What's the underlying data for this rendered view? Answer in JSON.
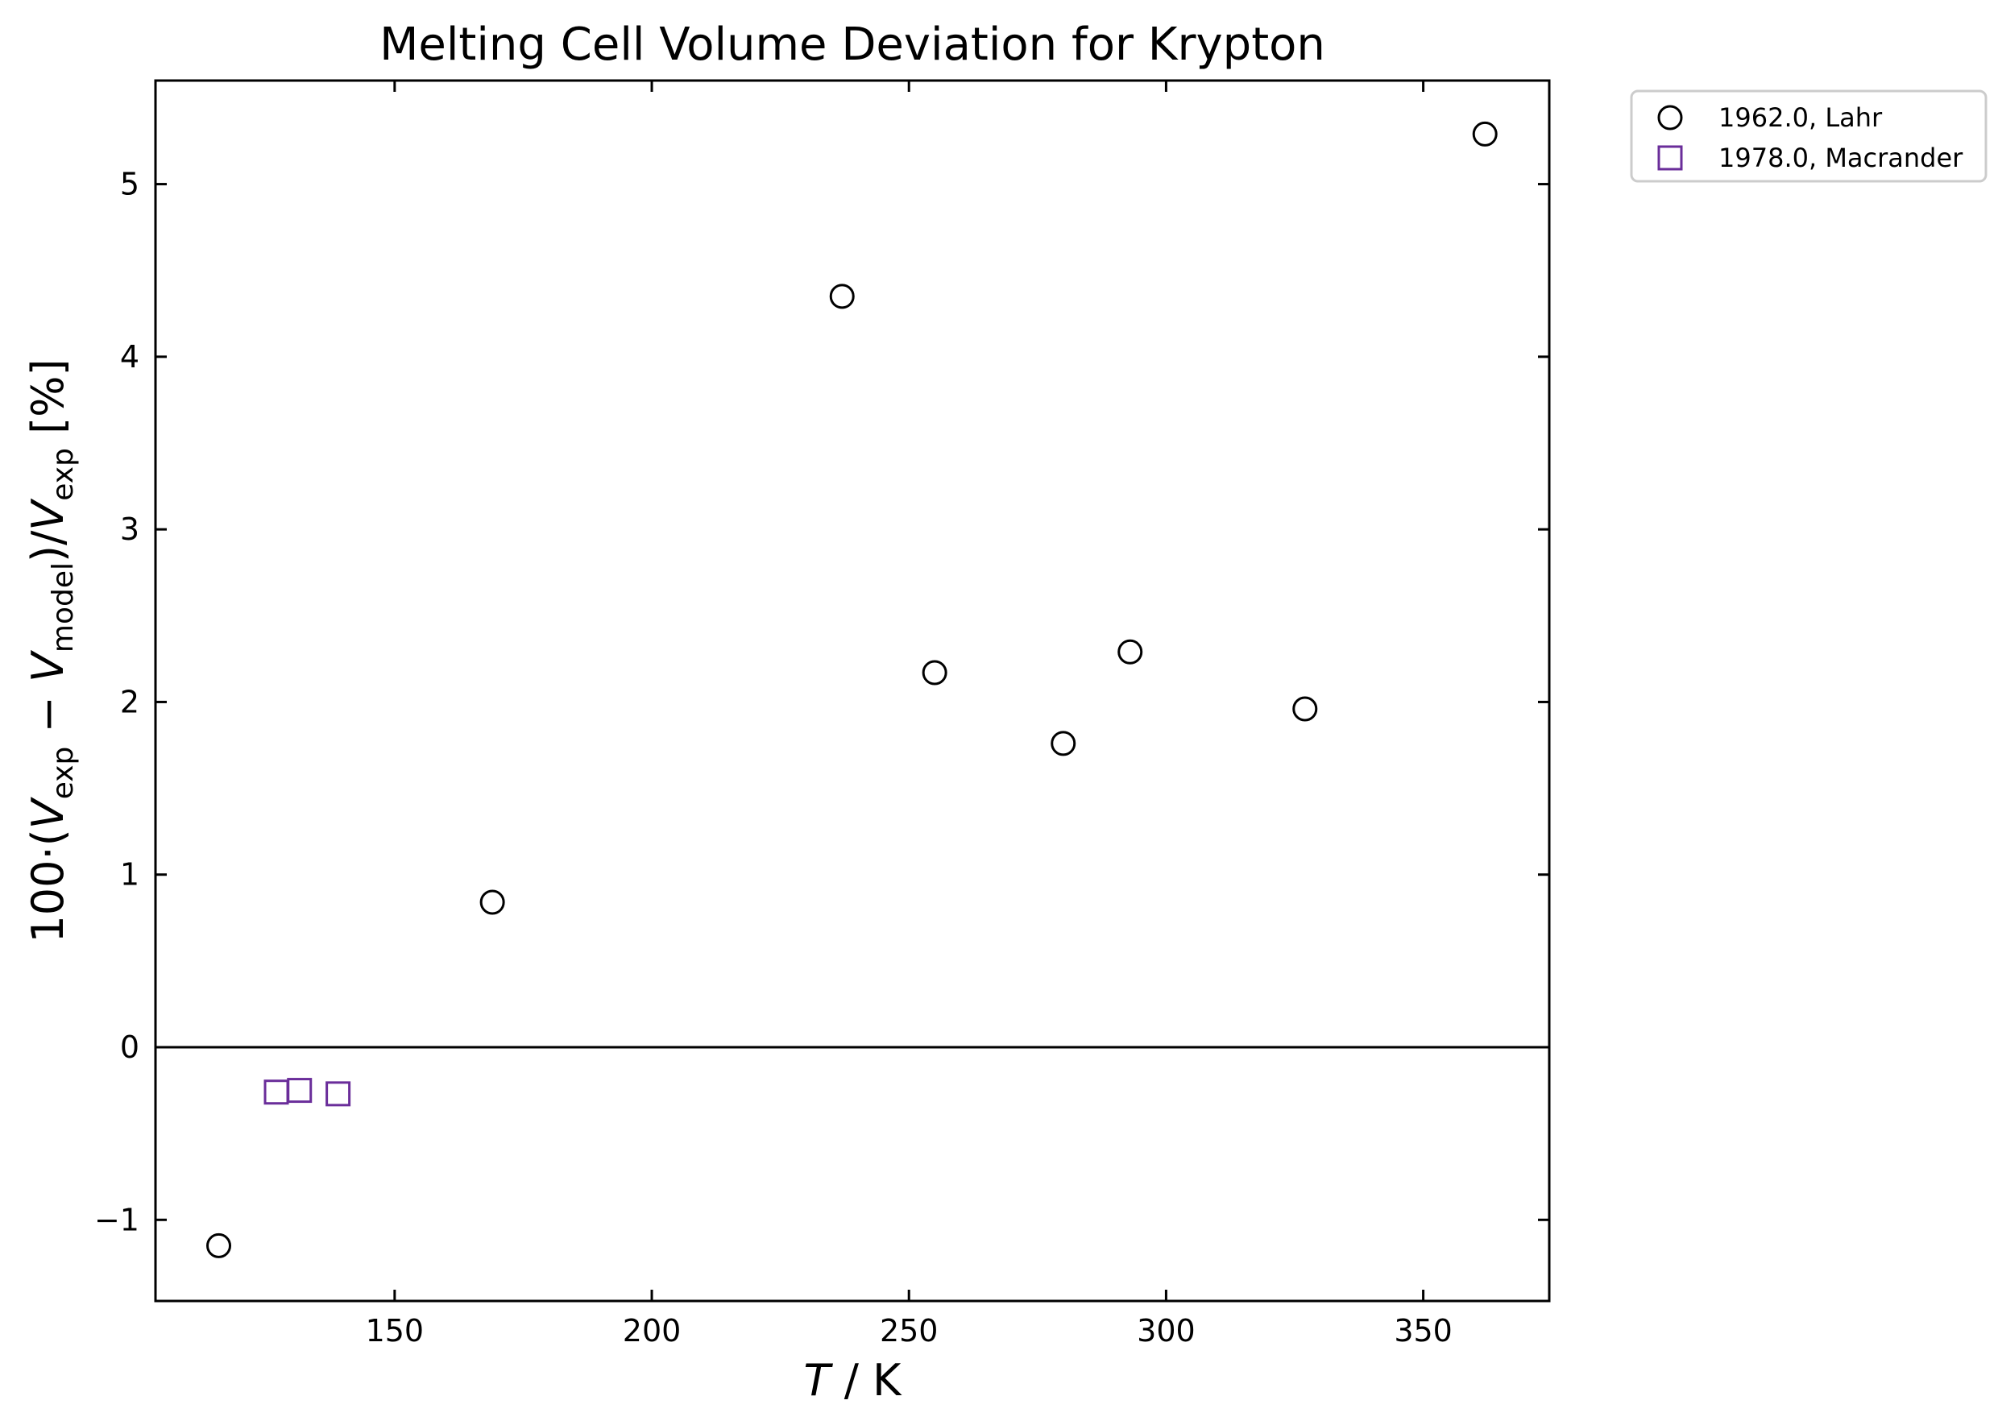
{
  "chart_data": {
    "type": "scatter",
    "title": "Melting Cell Volume Deviation for Krypton",
    "xlabel": {
      "var": "T",
      "unit": " / K"
    },
    "ylabel": {
      "prefix": "100·(",
      "v": "V",
      "exp": "exp",
      "minus": " − ",
      "model": "model",
      "close": ")/",
      "suffix": " [%]"
    },
    "xlim": [
      103.5,
      374.5
    ],
    "ylim": [
      -1.47,
      5.6
    ],
    "xticks": [
      {
        "value": 150,
        "label": "150"
      },
      {
        "value": 200,
        "label": "200"
      },
      {
        "value": 250,
        "label": "250"
      },
      {
        "value": 300,
        "label": "300"
      },
      {
        "value": 350,
        "label": "350"
      }
    ],
    "yticks": [
      {
        "value": -1,
        "label": "−1"
      },
      {
        "value": 0,
        "label": "0"
      },
      {
        "value": 1,
        "label": "1"
      },
      {
        "value": 2,
        "label": "2"
      },
      {
        "value": 3,
        "label": "3"
      },
      {
        "value": 4,
        "label": "4"
      },
      {
        "value": 5,
        "label": "5"
      }
    ],
    "zero_line": true,
    "grid": false,
    "legend_position": "outside-top-right",
    "series": [
      {
        "name": "1962.0, Lahr",
        "marker": "circle",
        "color": "#000000",
        "points": [
          {
            "x": 115.8,
            "y": -1.15
          },
          {
            "x": 169.0,
            "y": 0.84
          },
          {
            "x": 237.0,
            "y": 4.35
          },
          {
            "x": 255.0,
            "y": 2.17
          },
          {
            "x": 280.0,
            "y": 1.76
          },
          {
            "x": 293.0,
            "y": 2.29
          },
          {
            "x": 327.0,
            "y": 1.96
          },
          {
            "x": 362.0,
            "y": 5.29
          }
        ]
      },
      {
        "name": "1978.0, Macrander",
        "marker": "square",
        "color": "#6a2d9a",
        "points": [
          {
            "x": 127.0,
            "y": -0.26
          },
          {
            "x": 131.5,
            "y": -0.25
          },
          {
            "x": 139.0,
            "y": -0.27
          }
        ]
      }
    ]
  }
}
